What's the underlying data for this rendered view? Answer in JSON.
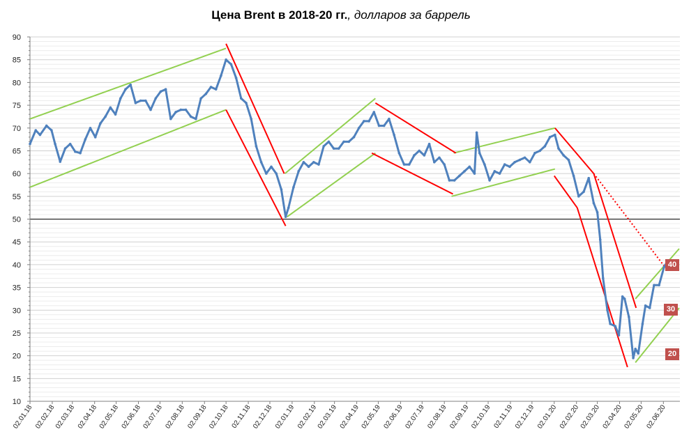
{
  "title": {
    "main": "Цена Brent в 2018-20 гг.",
    "sub": ", долларов за баррель"
  },
  "colors": {
    "series": "#4f81bd",
    "up_channel": "#92d050",
    "down_channel": "#ff0000",
    "badge": "#c0504d",
    "grid": "#d9d9d9",
    "reference": "#000000"
  },
  "chart_data": {
    "type": "line",
    "title": "Цена Brent в 2018-20 гг., долларов за баррель",
    "xlabel": "",
    "ylabel": "",
    "ylim": [
      10,
      90
    ],
    "xlim": [
      "2018-01-02",
      "2020-06-25"
    ],
    "yticks": [
      10,
      15,
      20,
      25,
      30,
      35,
      40,
      45,
      50,
      55,
      60,
      65,
      70,
      75,
      80,
      85,
      90
    ],
    "xticks": [
      "02.01.18",
      "02.02.18",
      "02.03.18",
      "02.04.18",
      "02.05.18",
      "02.06.18",
      "02.07.18",
      "02.08.18",
      "02.09.18",
      "02.10.18",
      "02.11.18",
      "02.12.18",
      "02.01.19",
      "02.02.19",
      "02.03.19",
      "02.04.19",
      "02.05.19",
      "02.06.19",
      "02.07.19",
      "02.08.19",
      "02.09.19",
      "02.10.19",
      "02.11.19",
      "02.12.19",
      "02.01.20",
      "02.02.20",
      "02.03.20",
      "02.04.20",
      "02.05.20",
      "02.06.20"
    ],
    "grid": true,
    "reference_line": 50,
    "series": [
      {
        "values": [
          [
            "2018-01-02",
            66.5
          ],
          [
            "2018-01-10",
            69.5
          ],
          [
            "2018-01-16",
            68.5
          ],
          [
            "2018-01-25",
            70.5
          ],
          [
            "2018-02-01",
            69.5
          ],
          [
            "2018-02-06",
            66.5
          ],
          [
            "2018-02-13",
            62.6
          ],
          [
            "2018-02-20",
            65.5
          ],
          [
            "2018-02-27",
            66.5
          ],
          [
            "2018-03-06",
            64.8
          ],
          [
            "2018-03-13",
            64.5
          ],
          [
            "2018-03-20",
            67.5
          ],
          [
            "2018-03-27",
            70.0
          ],
          [
            "2018-04-03",
            68.0
          ],
          [
            "2018-04-10",
            71.0
          ],
          [
            "2018-04-17",
            72.5
          ],
          [
            "2018-04-24",
            74.5
          ],
          [
            "2018-05-01",
            73.0
          ],
          [
            "2018-05-08",
            76.5
          ],
          [
            "2018-05-15",
            78.5
          ],
          [
            "2018-05-22",
            79.5
          ],
          [
            "2018-05-29",
            75.5
          ],
          [
            "2018-06-05",
            76.0
          ],
          [
            "2018-06-12",
            76.0
          ],
          [
            "2018-06-19",
            74.0
          ],
          [
            "2018-06-26",
            76.5
          ],
          [
            "2018-07-03",
            78.0
          ],
          [
            "2018-07-10",
            78.5
          ],
          [
            "2018-07-17",
            72.0
          ],
          [
            "2018-07-24",
            73.5
          ],
          [
            "2018-07-31",
            74.0
          ],
          [
            "2018-08-07",
            74.0
          ],
          [
            "2018-08-14",
            72.5
          ],
          [
            "2018-08-21",
            72.0
          ],
          [
            "2018-08-28",
            76.5
          ],
          [
            "2018-09-04",
            77.5
          ],
          [
            "2018-09-11",
            79.0
          ],
          [
            "2018-09-18",
            78.5
          ],
          [
            "2018-09-25",
            81.5
          ],
          [
            "2018-10-02",
            85.0
          ],
          [
            "2018-10-09",
            84.0
          ],
          [
            "2018-10-16",
            81.0
          ],
          [
            "2018-10-23",
            76.5
          ],
          [
            "2018-10-30",
            75.5
          ],
          [
            "2018-11-06",
            72.0
          ],
          [
            "2018-11-13",
            66.0
          ],
          [
            "2018-11-20",
            62.5
          ],
          [
            "2018-11-27",
            60.0
          ],
          [
            "2018-12-04",
            61.5
          ],
          [
            "2018-12-11",
            60.0
          ],
          [
            "2018-12-18",
            56.5
          ],
          [
            "2018-12-24",
            50.5
          ],
          [
            "2018-12-28",
            52.5
          ],
          [
            "2019-01-04",
            57.0
          ],
          [
            "2019-01-11",
            60.5
          ],
          [
            "2019-01-18",
            62.5
          ],
          [
            "2019-01-25",
            61.5
          ],
          [
            "2019-02-01",
            62.5
          ],
          [
            "2019-02-08",
            62.0
          ],
          [
            "2019-02-15",
            66.0
          ],
          [
            "2019-02-22",
            67.0
          ],
          [
            "2019-03-01",
            65.5
          ],
          [
            "2019-03-08",
            65.5
          ],
          [
            "2019-03-15",
            67.0
          ],
          [
            "2019-03-22",
            67.0
          ],
          [
            "2019-03-29",
            68.0
          ],
          [
            "2019-04-05",
            70.0
          ],
          [
            "2019-04-12",
            71.5
          ],
          [
            "2019-04-19",
            71.5
          ],
          [
            "2019-04-26",
            73.5
          ],
          [
            "2019-05-03",
            70.5
          ],
          [
            "2019-05-10",
            70.5
          ],
          [
            "2019-05-17",
            72.0
          ],
          [
            "2019-05-24",
            68.5
          ],
          [
            "2019-05-31",
            64.5
          ],
          [
            "2019-06-07",
            62.0
          ],
          [
            "2019-06-14",
            62.0
          ],
          [
            "2019-06-21",
            64.0
          ],
          [
            "2019-06-28",
            65.0
          ],
          [
            "2019-07-05",
            64.0
          ],
          [
            "2019-07-12",
            66.5
          ],
          [
            "2019-07-19",
            62.5
          ],
          [
            "2019-07-26",
            63.5
          ],
          [
            "2019-08-02",
            62.0
          ],
          [
            "2019-08-09",
            58.5
          ],
          [
            "2019-08-16",
            58.5
          ],
          [
            "2019-08-23",
            59.5
          ],
          [
            "2019-08-30",
            60.5
          ],
          [
            "2019-09-06",
            61.5
          ],
          [
            "2019-09-13",
            60.0
          ],
          [
            "2019-09-16",
            69.0
          ],
          [
            "2019-09-20",
            64.5
          ],
          [
            "2019-09-27",
            62.0
          ],
          [
            "2019-10-04",
            58.5
          ],
          [
            "2019-10-11",
            60.5
          ],
          [
            "2019-10-18",
            60.0
          ],
          [
            "2019-10-25",
            62.0
          ],
          [
            "2019-11-01",
            61.5
          ],
          [
            "2019-11-08",
            62.5
          ],
          [
            "2019-11-15",
            63.0
          ],
          [
            "2019-11-22",
            63.5
          ],
          [
            "2019-11-29",
            62.5
          ],
          [
            "2019-12-06",
            64.5
          ],
          [
            "2019-12-13",
            65.0
          ],
          [
            "2019-12-20",
            66.0
          ],
          [
            "2019-12-27",
            68.0
          ],
          [
            "2020-01-03",
            68.5
          ],
          [
            "2020-01-08",
            65.5
          ],
          [
            "2020-01-15",
            64.0
          ],
          [
            "2020-01-22",
            63.0
          ],
          [
            "2020-01-29",
            59.5
          ],
          [
            "2020-02-05",
            55.0
          ],
          [
            "2020-02-12",
            56.0
          ],
          [
            "2020-02-19",
            59.0
          ],
          [
            "2020-02-26",
            53.5
          ],
          [
            "2020-03-02",
            51.5
          ],
          [
            "2020-03-06",
            45.5
          ],
          [
            "2020-03-10",
            37.0
          ],
          [
            "2020-03-16",
            30.0
          ],
          [
            "2020-03-20",
            27.0
          ],
          [
            "2020-03-27",
            26.5
          ],
          [
            "2020-04-01",
            24.5
          ],
          [
            "2020-04-06",
            33.0
          ],
          [
            "2020-04-09",
            32.5
          ],
          [
            "2020-04-15",
            28.5
          ],
          [
            "2020-04-21",
            19.5
          ],
          [
            "2020-04-24",
            21.5
          ],
          [
            "2020-04-28",
            20.5
          ],
          [
            "2020-05-04",
            27.0
          ],
          [
            "2020-05-08",
            31.0
          ],
          [
            "2020-05-14",
            30.5
          ],
          [
            "2020-05-20",
            35.5
          ],
          [
            "2020-05-27",
            35.5
          ],
          [
            "2020-06-03",
            39.5
          ],
          [
            "2020-06-05",
            40.0
          ]
        ]
      }
    ],
    "up_channels": [
      [
        [
          "2018-01-02",
          72.0
        ],
        [
          "2018-10-02",
          87.5
        ]
      ],
      [
        [
          "2018-01-02",
          57.0
        ],
        [
          "2018-10-02",
          74.0
        ]
      ],
      [
        [
          "2018-12-23",
          60.0
        ],
        [
          "2019-04-28",
          76.5
        ]
      ],
      [
        [
          "2018-12-26",
          50.5
        ],
        [
          "2019-04-28",
          64.5
        ]
      ],
      [
        [
          "2019-08-15",
          64.5
        ],
        [
          "2020-01-03",
          70.0
        ]
      ],
      [
        [
          "2019-08-12",
          55.0
        ],
        [
          "2020-01-03",
          61.0
        ]
      ],
      [
        [
          "2020-04-24",
          32.5
        ],
        [
          "2020-06-24",
          43.5
        ]
      ],
      [
        [
          "2020-04-24",
          18.5
        ],
        [
          "2020-06-24",
          30.5
        ]
      ]
    ],
    "down_channels": [
      [
        [
          "2018-10-02",
          88.5
        ],
        [
          "2018-12-22",
          60.0
        ]
      ],
      [
        [
          "2018-10-02",
          74.0
        ],
        [
          "2018-12-24",
          48.5
        ]
      ],
      [
        [
          "2019-04-28",
          75.5
        ],
        [
          "2019-08-18",
          64.5
        ]
      ],
      [
        [
          "2019-04-23",
          64.5
        ],
        [
          "2019-08-14",
          55.5
        ]
      ],
      [
        [
          "2020-01-03",
          70.0
        ],
        [
          "2020-02-26",
          60.0
        ]
      ],
      [
        [
          "2020-01-02",
          59.5
        ],
        [
          "2020-02-03",
          52.5
        ]
      ],
      [
        [
          "2020-02-26",
          60.0
        ],
        [
          "2020-04-25",
          30.5
        ]
      ],
      [
        [
          "2020-02-03",
          52.5
        ],
        [
          "2020-04-13",
          17.5
        ]
      ]
    ],
    "forecast_line": [
      [
        "2020-02-26",
        60.0
      ],
      [
        "2020-06-04",
        39.5
      ]
    ],
    "target_labels": [
      {
        "value": 40,
        "text": "40"
      },
      {
        "value": 30,
        "text": "30"
      },
      {
        "value": 20,
        "text": "20"
      }
    ]
  }
}
